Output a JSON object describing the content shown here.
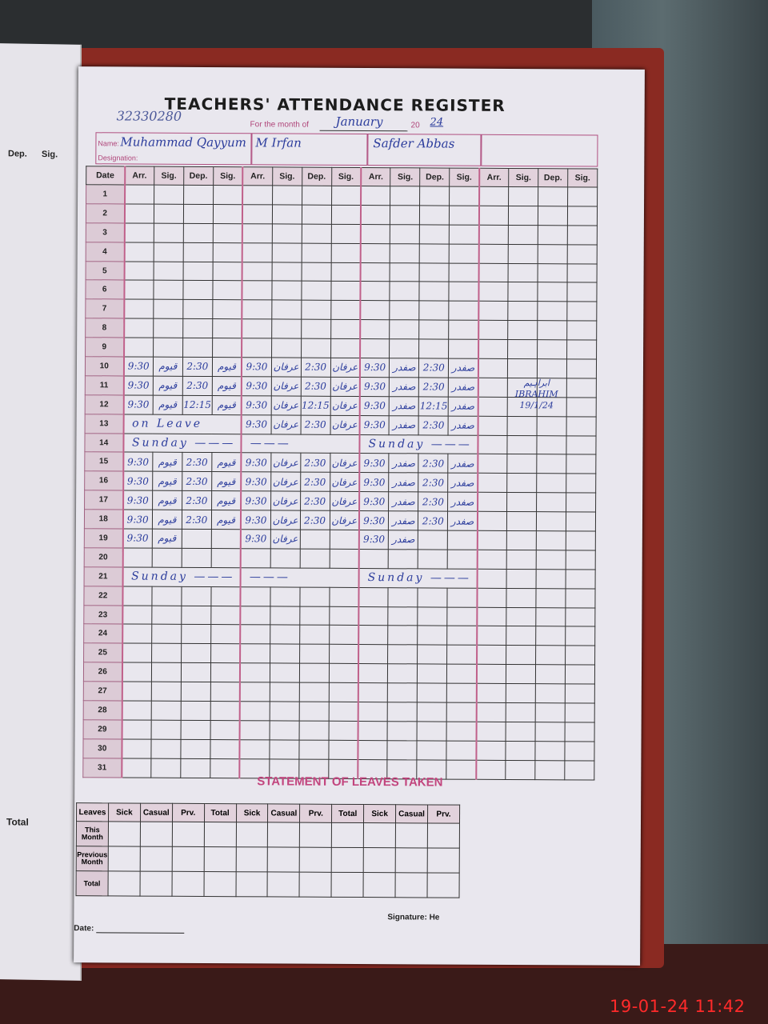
{
  "register": {
    "title": "TEACHERS' ATTENDANCE REGISTER",
    "code": "32330280",
    "month_label": "For the month of",
    "month": "January",
    "year_prefix": "20",
    "year": "24",
    "name_label": "Name:",
    "designation_label": "Designation:",
    "teachers": [
      {
        "name": "Muhammad Qayyum"
      },
      {
        "name": "M Irfan"
      },
      {
        "name": "Safder Abbas"
      },
      {
        "name": ""
      }
    ],
    "headers": {
      "date": "Date",
      "arr": "Arr.",
      "sig": "Sig.",
      "dep": "Dep."
    },
    "rows": [
      {
        "date": "1"
      },
      {
        "date": "2"
      },
      {
        "date": "3"
      },
      {
        "date": "4"
      },
      {
        "date": "5"
      },
      {
        "date": "6"
      },
      {
        "date": "7"
      },
      {
        "date": "8"
      },
      {
        "date": "9"
      },
      {
        "date": "10",
        "t": [
          [
            "9:30",
            "قیوم",
            "2:30",
            "قیوم"
          ],
          [
            "9:30",
            "عرفان",
            "2:30",
            "عرفان"
          ],
          [
            "9:30",
            "صفدر",
            "2:30",
            "صفدر"
          ]
        ]
      },
      {
        "date": "11",
        "t": [
          [
            "9:30",
            "قیوم",
            "2:30",
            "قیوم"
          ],
          [
            "9:30",
            "عرفان",
            "2:30",
            "عرفان"
          ],
          [
            "9:30",
            "صفدر",
            "2:30",
            "صفدر"
          ]
        ]
      },
      {
        "date": "12",
        "t": [
          [
            "9:30",
            "قیوم",
            "12:15",
            "قیوم"
          ],
          [
            "9:30",
            "عرفان",
            "12:15",
            "عرفان"
          ],
          [
            "9:30",
            "صفدر",
            "12:15",
            "صفدر"
          ]
        ]
      },
      {
        "date": "13",
        "t": [
          {
            "note": "on Leave"
          },
          [
            "9:30",
            "عرفان",
            "2:30",
            "عرفان"
          ],
          [
            "9:30",
            "صفدر",
            "2:30",
            "صفدر"
          ]
        ]
      },
      {
        "date": "14",
        "t": [
          {
            "note": "Sunday ———"
          },
          {
            "note": "———"
          },
          {
            "note": "Sunday ———"
          }
        ]
      },
      {
        "date": "15",
        "t": [
          [
            "9:30",
            "قیوم",
            "2:30",
            "قیوم"
          ],
          [
            "9:30",
            "عرفان",
            "2:30",
            "عرفان"
          ],
          [
            "9:30",
            "صفدر",
            "2:30",
            "صفدر"
          ]
        ]
      },
      {
        "date": "16",
        "t": [
          [
            "9:30",
            "قیوم",
            "2:30",
            "قیوم"
          ],
          [
            "9:30",
            "عرفان",
            "2:30",
            "عرفان"
          ],
          [
            "9:30",
            "صفدر",
            "2:30",
            "صفدر"
          ]
        ]
      },
      {
        "date": "17",
        "t": [
          [
            "9:30",
            "قیوم",
            "2:30",
            "قیوم"
          ],
          [
            "9:30",
            "عرفان",
            "2:30",
            "عرفان"
          ],
          [
            "9:30",
            "صفدر",
            "2:30",
            "صفدر"
          ]
        ]
      },
      {
        "date": "18",
        "t": [
          [
            "9:30",
            "قیوم",
            "2:30",
            "قیوم"
          ],
          [
            "9:30",
            "عرفان",
            "2:30",
            "عرفان"
          ],
          [
            "9:30",
            "صفدر",
            "2:30",
            "صفدر"
          ]
        ]
      },
      {
        "date": "19",
        "t": [
          [
            "9:30",
            "قیوم",
            "",
            ""
          ],
          [
            "9:30",
            "عرفان",
            "",
            ""
          ],
          [
            "9:30",
            "صفدر",
            "",
            ""
          ]
        ]
      },
      {
        "date": "20"
      },
      {
        "date": "21",
        "t": [
          {
            "note": "Sunday ———"
          },
          {
            "note": "———"
          },
          {
            "note": "Sunday ———"
          }
        ]
      },
      {
        "date": "22"
      },
      {
        "date": "23"
      },
      {
        "date": "24"
      },
      {
        "date": "25"
      },
      {
        "date": "26"
      },
      {
        "date": "27"
      },
      {
        "date": "28"
      },
      {
        "date": "29"
      },
      {
        "date": "30"
      },
      {
        "date": "31"
      }
    ],
    "side_note": {
      "signature": "ابراہیم",
      "name": "IBRAHIM",
      "date": "19/1/24"
    }
  },
  "leaves": {
    "title": "STATEMENT OF LEAVES TAKEN",
    "row_header": "Leaves",
    "columns": [
      "Sick",
      "Casual",
      "Prv.",
      "Total",
      "Sick",
      "Casual",
      "Prv.",
      "Total",
      "Sick",
      "Casual",
      "Prv."
    ],
    "rows": [
      "This Month",
      "Previous Month",
      "Total"
    ]
  },
  "footer": {
    "date_label": "Date:",
    "signature_label": "Signature: He"
  },
  "left_page": {
    "dep": "Dep.",
    "sig": "Sig.",
    "total": "Total"
  },
  "camera_timestamp": "19-01-24  11:42",
  "colors": {
    "ink": "#2b3c9c",
    "form_pink": "#c2457e",
    "timestamp": "#ff2a2a"
  }
}
